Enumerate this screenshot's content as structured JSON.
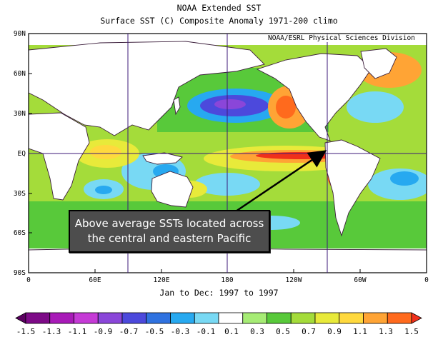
{
  "title": "NOAA Extended SST",
  "subtitle": "Surface SST (C) Composite Anomaly 1971-200 climo",
  "credit": "NOAA/ESRL Physical Sciences Division",
  "period": "Jan to Dec: 1997 to 1997",
  "annotation": {
    "line1": "Above average SSTs located across",
    "line2": "the central and eastern Pacific"
  },
  "lat_labels": [
    "90N",
    "60N",
    "30N",
    "EQ",
    "30S",
    "60S",
    "90S"
  ],
  "lon_labels": [
    "0",
    "60E",
    "120E",
    "180",
    "120W",
    "60W",
    "0"
  ],
  "colorbar": {
    "labels": [
      "-1.5",
      "-1.3",
      "-1.1",
      "-0.9",
      "-0.7",
      "-0.5",
      "-0.3",
      "-0.1",
      "0.1",
      "0.3",
      "0.5",
      "0.7",
      "0.9",
      "1.1",
      "1.3",
      "1.5"
    ],
    "colors": [
      "#5a0060",
      "#7d0a87",
      "#a81ab8",
      "#c53ad6",
      "#8a46d9",
      "#4c49dc",
      "#2f72e0",
      "#27a9f0",
      "#78d9f4",
      "#ffffff",
      "#a6ec75",
      "#58c93a",
      "#a4dc3a",
      "#e8ea3a",
      "#ffd93e",
      "#ffa435",
      "#ff6a1d",
      "#f0301b"
    ]
  }
}
